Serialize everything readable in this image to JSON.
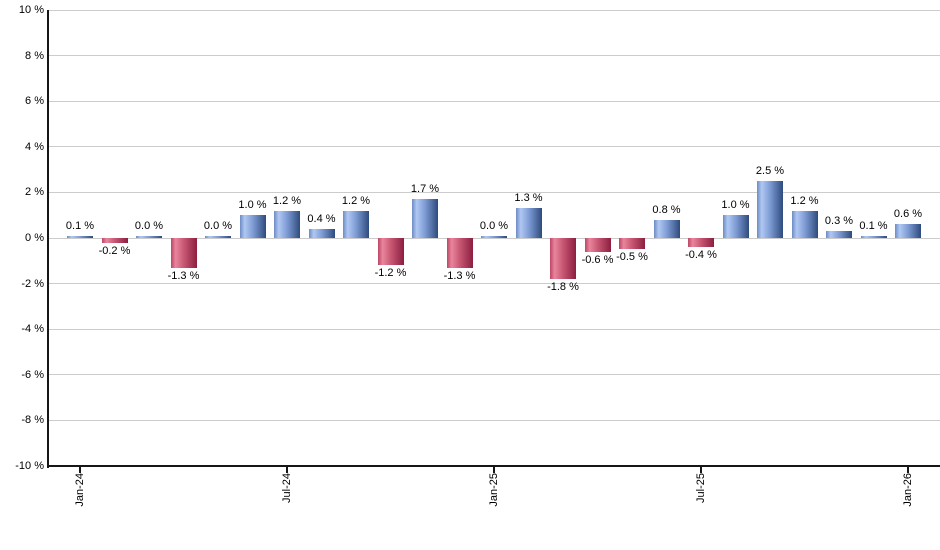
{
  "chart_data": {
    "type": "bar",
    "title": "",
    "xlabel": "",
    "ylabel": "",
    "grid": true,
    "legend": null,
    "y_axis": {
      "min": -10,
      "max": 10,
      "step": 2,
      "tick_labels": [
        "10 %",
        "8 %",
        "6 %",
        "4 %",
        "2 %",
        "0 %",
        "-2 %",
        "-4 %",
        "-6 %",
        "-8 %",
        "-10 %"
      ]
    },
    "x_axis": {
      "tick_labels": [
        "Jan-24",
        "Jul-24",
        "Jan-25",
        "Jul-25",
        "Jan-26"
      ],
      "tick_indices": [
        0,
        6,
        12,
        18,
        24
      ]
    },
    "values": [
      0.1,
      -0.2,
      0.0,
      -1.3,
      0.0,
      1.0,
      1.2,
      0.4,
      1.2,
      -1.2,
      1.7,
      -1.3,
      0.0,
      1.3,
      -1.8,
      -0.6,
      -0.5,
      0.8,
      -0.4,
      1.0,
      2.5,
      1.2,
      0.3,
      0.1,
      0.6
    ],
    "bar_labels": [
      "0.1 %",
      "-0.2 %",
      "0.0 %",
      "-1.3 %",
      "0.0 %",
      "1.0 %",
      "1.2 %",
      "0.4 %",
      "1.2 %",
      "-1.2 %",
      "1.7 %",
      "-1.3 %",
      "0.0 %",
      "1.3 %",
      "-1.8 %",
      "-0.6 %",
      "-0.5 %",
      "0.8 %",
      "-0.4 %",
      "1.0 %",
      "2.5 %",
      "1.2 %",
      "0.3 %",
      "0.1 %",
      "0.6 %"
    ],
    "colors": {
      "positive_bar_gradient": [
        "#6d8cc4",
        "#b0c8f2",
        "#7e9cd4",
        "#2e4b7e"
      ],
      "negative_bar_gradient": [
        "#bc4766",
        "#e8859c",
        "#c75672",
        "#8c1e40"
      ],
      "gridline": "#cccccc",
      "axis": "#161616",
      "label_text": "#000000"
    }
  }
}
